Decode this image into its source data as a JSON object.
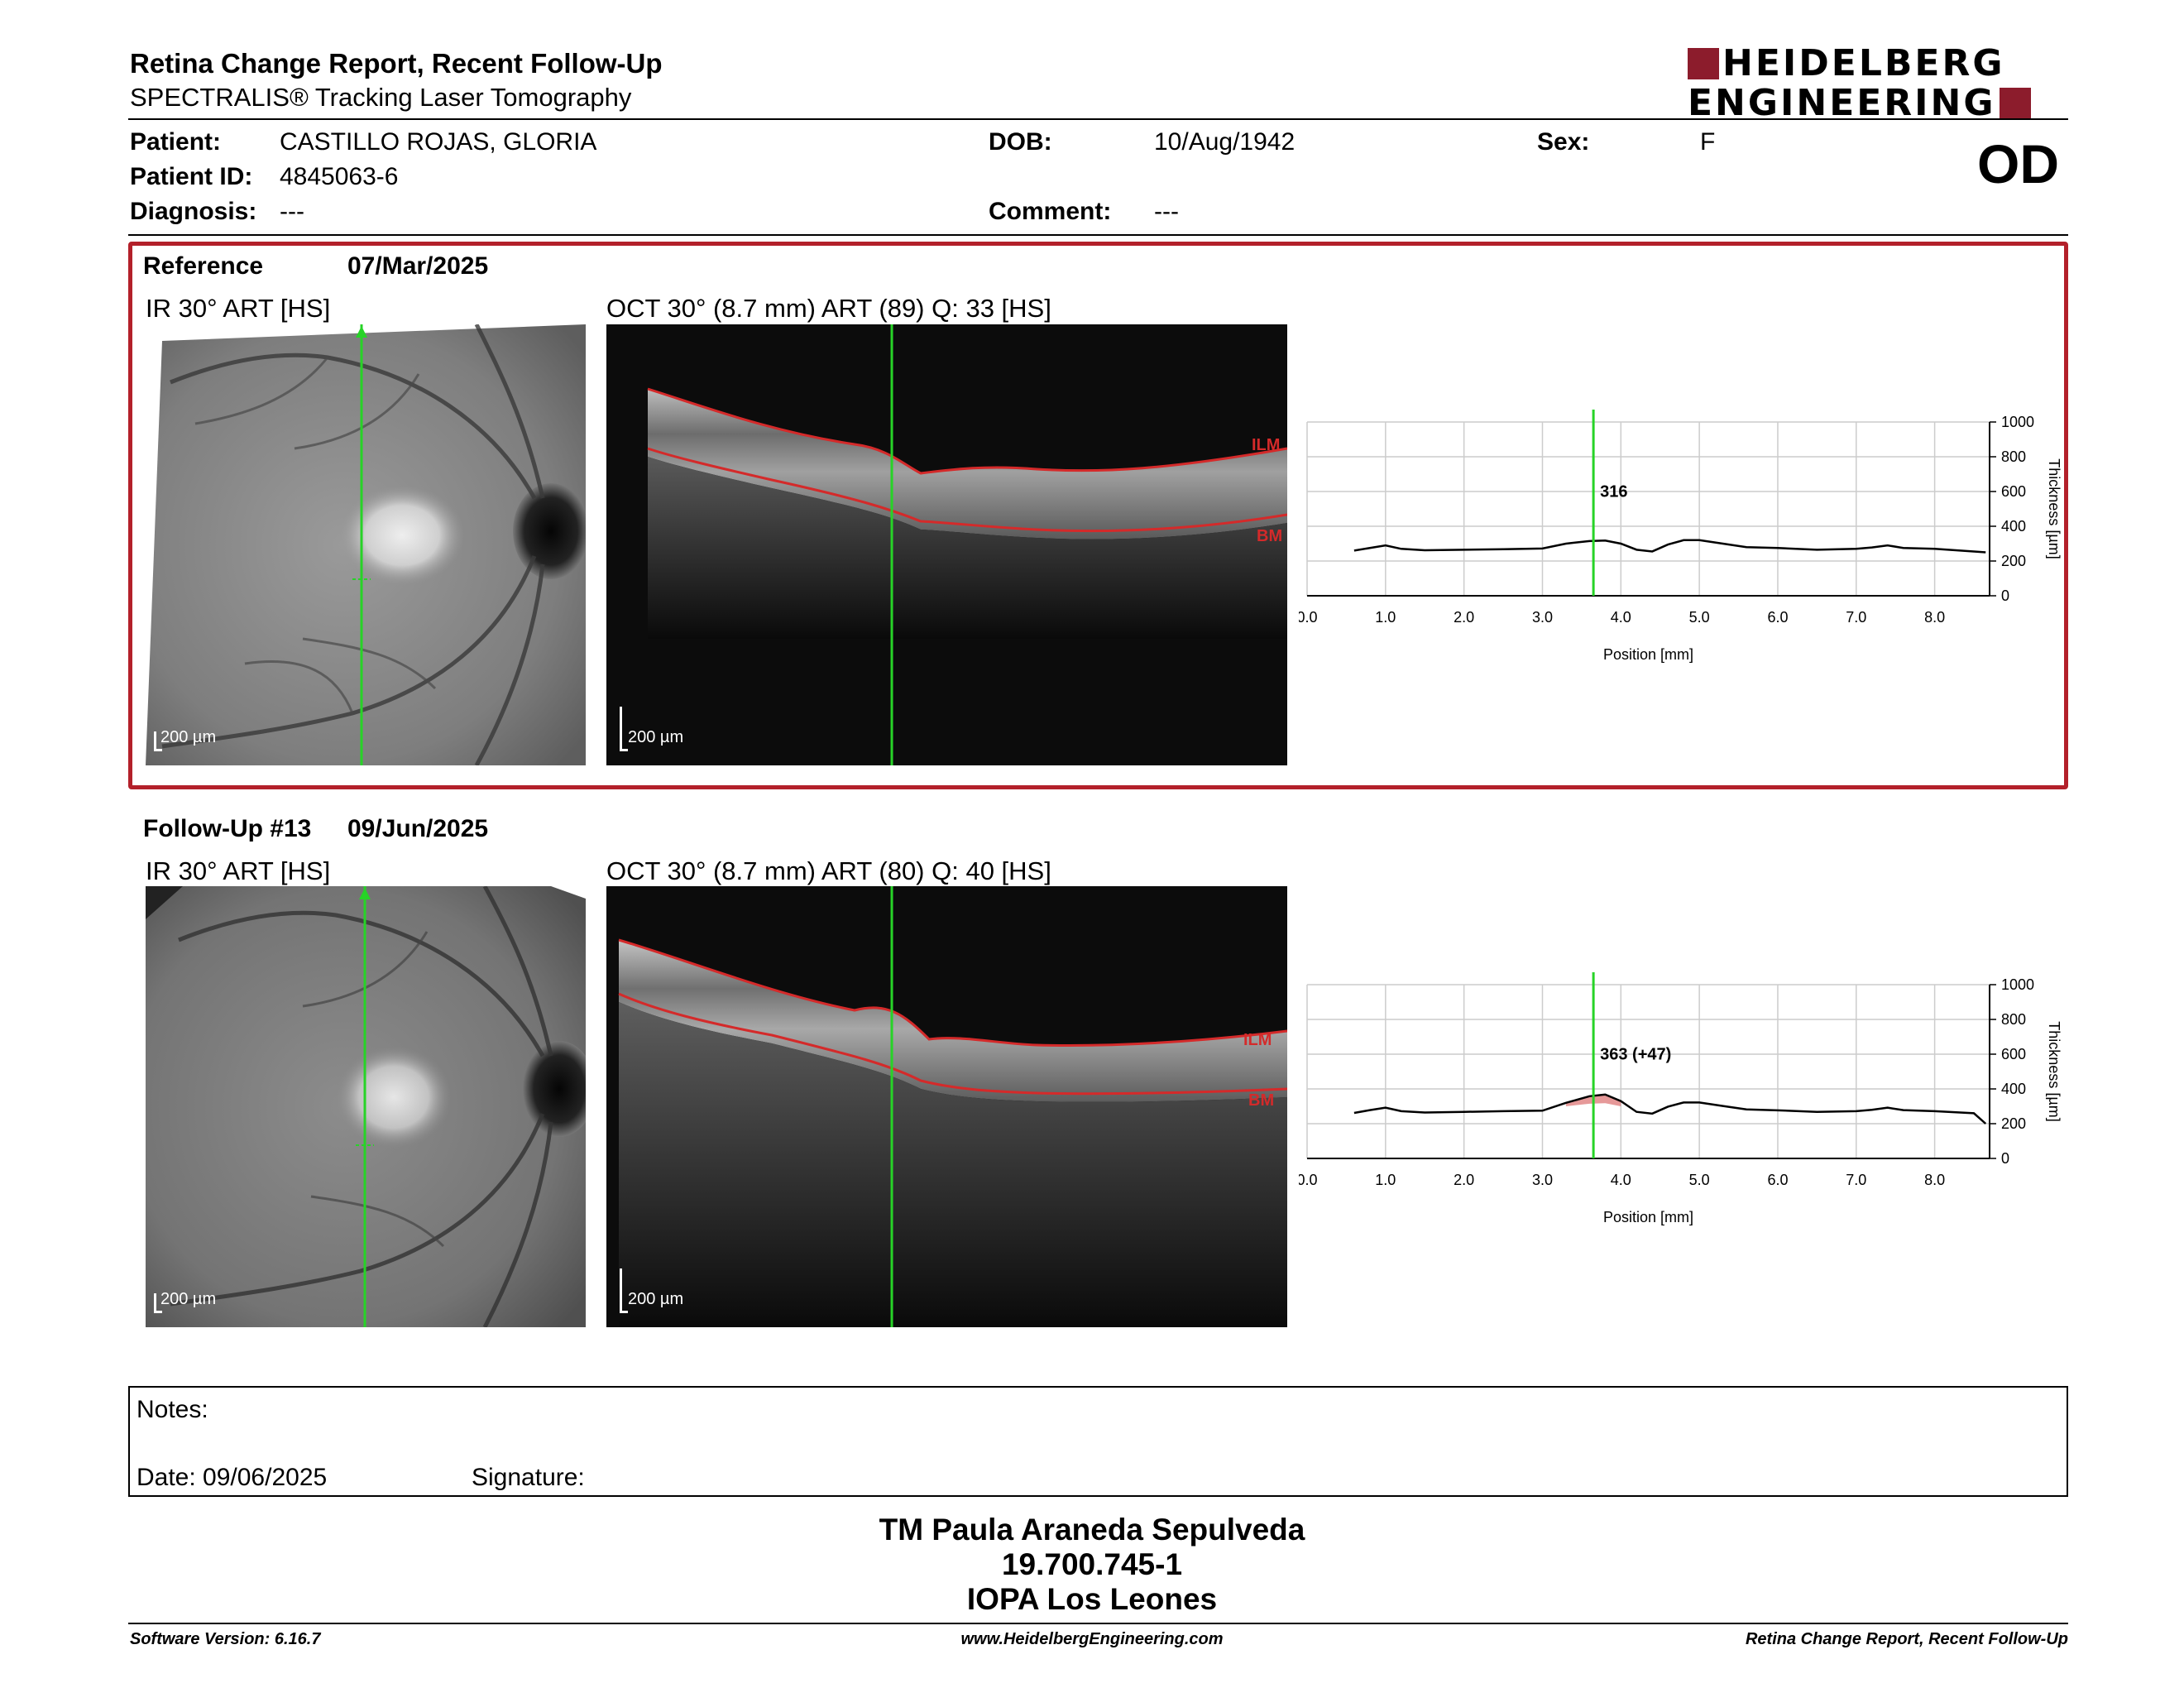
{
  "header": {
    "title": "Retina Change Report, Recent Follow-Up",
    "subtitle": "SPECTRALIS® Tracking Laser Tomography",
    "logo_line1": "HEIDELBERG",
    "logo_line2": "ENGINEERING",
    "brand_color": "#8c1c2c"
  },
  "patient": {
    "patient_label": "Patient:",
    "patient_value": "CASTILLO ROJAS, GLORIA",
    "id_label": "Patient ID:",
    "id_value": "4845063-6",
    "diagnosis_label": "Diagnosis:",
    "diagnosis_value": "---",
    "dob_label": "DOB:",
    "dob_value": "10/Aug/1942",
    "comment_label": "Comment:",
    "comment_value": "---",
    "sex_label": "Sex:",
    "sex_value": "F",
    "eye": "OD"
  },
  "reference": {
    "label": "Reference",
    "date": "07/Mar/2025",
    "ir_label": "IR 30° ART [HS]",
    "oct_label": "OCT 30° (8.7 mm) ART (89) Q: 33 [HS]",
    "scale_ir": "200 µm",
    "scale_oct": "200 µm",
    "ilm": "ILM",
    "bm": "BM",
    "box_color": "#b3202a"
  },
  "followup": {
    "label": "Follow-Up #13",
    "date": "09/Jun/2025",
    "ir_label": "IR 30° ART [HS]",
    "oct_label": "OCT 30° (8.7 mm) ART (80) Q: 40 [HS]",
    "scale_ir": "200 µm",
    "scale_oct": "200 µm",
    "ilm": "ILM",
    "bm": "BM"
  },
  "chart_data": [
    {
      "type": "line",
      "xlabel": "Position [mm]",
      "ylabel": "Thickness [µm]",
      "xlim": [
        0,
        8.7
      ],
      "ylim": [
        0,
        1000
      ],
      "x_ticks": [
        "0.0",
        "1.0",
        "2.0",
        "3.0",
        "4.0",
        "5.0",
        "6.0",
        "7.0",
        "8.0"
      ],
      "y_ticks": [
        "0",
        "200",
        "400",
        "600",
        "800",
        "1000"
      ],
      "grid": true,
      "cursor_x": 3.65,
      "cursor_label": "316",
      "x": [
        0.6,
        0.8,
        1.0,
        1.2,
        1.5,
        2.0,
        2.5,
        3.0,
        3.3,
        3.6,
        3.8,
        4.0,
        4.2,
        4.4,
        4.6,
        4.8,
        5.0,
        5.3,
        5.6,
        6.0,
        6.5,
        7.0,
        7.2,
        7.4,
        7.6,
        8.0,
        8.5,
        8.65
      ],
      "values": [
        260,
        275,
        290,
        270,
        262,
        265,
        268,
        272,
        300,
        315,
        318,
        300,
        265,
        255,
        295,
        320,
        320,
        300,
        280,
        275,
        265,
        270,
        278,
        290,
        275,
        270,
        255,
        250
      ],
      "line_color": "#000000"
    },
    {
      "type": "line",
      "xlabel": "Position [mm]",
      "ylabel": "Thickness [µm]",
      "xlim": [
        0,
        8.7
      ],
      "ylim": [
        0,
        1000
      ],
      "x_ticks": [
        "0.0",
        "1.0",
        "2.0",
        "3.0",
        "4.0",
        "5.0",
        "6.0",
        "7.0",
        "8.0"
      ],
      "y_ticks": [
        "0",
        "200",
        "400",
        "600",
        "800",
        "1000"
      ],
      "grid": true,
      "cursor_x": 3.65,
      "cursor_label": "363 (+47)",
      "x": [
        0.6,
        0.8,
        1.0,
        1.2,
        1.5,
        2.0,
        2.5,
        3.0,
        3.3,
        3.6,
        3.8,
        4.0,
        4.2,
        4.4,
        4.6,
        4.8,
        5.0,
        5.3,
        5.6,
        6.0,
        6.5,
        7.0,
        7.2,
        7.4,
        7.6,
        8.0,
        8.5,
        8.65
      ],
      "values": [
        262,
        278,
        292,
        272,
        264,
        268,
        272,
        275,
        320,
        358,
        368,
        330,
        268,
        258,
        298,
        322,
        322,
        302,
        282,
        277,
        268,
        272,
        280,
        292,
        278,
        272,
        260,
        200
      ],
      "change_fill": "#e08080",
      "line_color": "#000000"
    }
  ],
  "notes": {
    "notes_label": "Notes:",
    "date_label": "Date: 09/06/2025",
    "signature_label": "Signature:"
  },
  "signature_block": {
    "name": "TM Paula Araneda Sepulveda",
    "rut": "19.700.745-1",
    "institution": "IOPA Los Leones"
  },
  "footer": {
    "software": "Software Version: 6.16.7",
    "website": "www.HeidelbergEngineering.com",
    "report": "Retina Change Report, Recent Follow-Up"
  }
}
